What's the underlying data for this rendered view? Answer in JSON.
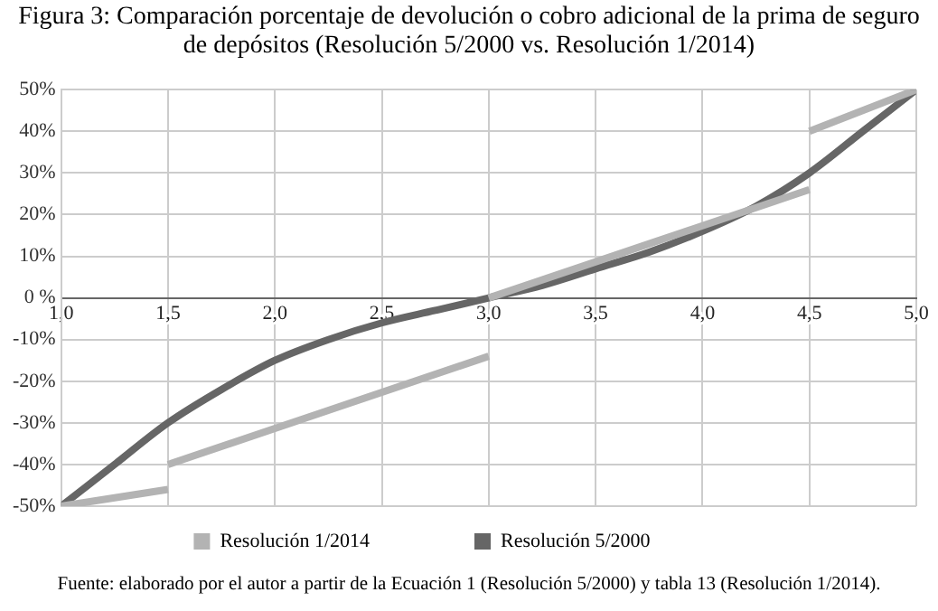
{
  "chart_data": {
    "type": "line",
    "title": "Figura 3: Comparación porcentaje de devolución o cobro adicional de la prima de seguro de depósitos (Resolución 5/2000 vs. Resolución 1/2014)",
    "annotations": [
      "Fuente: elaborado por el autor a partir de la Ecuación 1 (Resolución 5/2000) y tabla 13 (Resolución 1/2014)."
    ],
    "series": [
      {
        "name": "Resolución 1/2014",
        "color": "#b3b3b3",
        "x": [
          1,
          1.5,
          null,
          1.5,
          3,
          null,
          3,
          4.5,
          null,
          4.5,
          5
        ],
        "values": [
          -50,
          -46,
          null,
          -40,
          -14,
          null,
          0,
          26,
          null,
          40,
          50
        ]
      },
      {
        "name": "Resolución 5/2000",
        "color": "#666666",
        "x": [
          1,
          1.25,
          1.5,
          1.75,
          2,
          2.25,
          2.5,
          2.75,
          3,
          3.25,
          3.5,
          3.75,
          4,
          4.25,
          4.5,
          4.75,
          5
        ],
        "values": [
          -50,
          -40,
          -30,
          -22,
          -15,
          -10,
          -6,
          -3,
          0,
          3,
          7,
          11,
          16,
          22,
          30,
          40,
          50
        ]
      }
    ],
    "xlim": [
      1,
      5
    ],
    "xticks": [
      {
        "value": 1,
        "label": "1,0"
      },
      {
        "value": 1.5,
        "label": "1,5"
      },
      {
        "value": 2,
        "label": "2,0"
      },
      {
        "value": 2.5,
        "label": "2,5"
      },
      {
        "value": 3,
        "label": "3,0"
      },
      {
        "value": 3.5,
        "label": "3,5"
      },
      {
        "value": 4,
        "label": "4,0"
      },
      {
        "value": 4.5,
        "label": "4,5"
      },
      {
        "value": 5,
        "label": "5,0"
      }
    ],
    "ylim": [
      -50,
      50
    ],
    "yticks": [
      {
        "value": -50,
        "label": "-50%"
      },
      {
        "value": -40,
        "label": "-40%"
      },
      {
        "value": -30,
        "label": "-30%"
      },
      {
        "value": -20,
        "label": "-20%"
      },
      {
        "value": -10,
        "label": "-10%"
      },
      {
        "value": 0,
        "label": "0 %"
      },
      {
        "value": 10,
        "label": "10%"
      },
      {
        "value": 20,
        "label": "20%"
      },
      {
        "value": 30,
        "label": "30%"
      },
      {
        "value": 40,
        "label": "40%"
      },
      {
        "value": 50,
        "label": "50%"
      }
    ],
    "grid": true,
    "legend": "bottom",
    "marker": "none",
    "line_style": "solid"
  }
}
